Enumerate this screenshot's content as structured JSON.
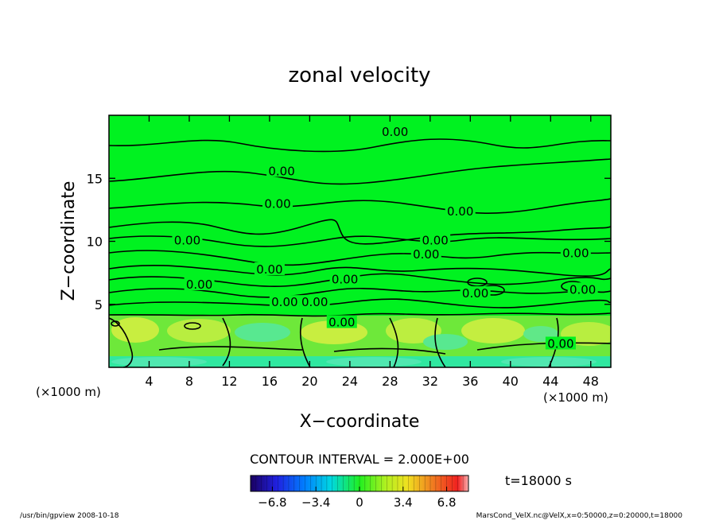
{
  "chart_data": {
    "type": "heatmap",
    "title": "zonal velocity",
    "xlabel": "X−coordinate",
    "ylabel": "Z−coordinate",
    "x_unit_left": "(×1000 m)",
    "x_unit_right": "(×1000 m)",
    "xlim": [
      0,
      50
    ],
    "ylim": [
      0,
      20
    ],
    "xticks": [
      4,
      8,
      12,
      16,
      20,
      24,
      28,
      32,
      36,
      40,
      44,
      48
    ],
    "yticks": [
      5,
      10,
      15
    ],
    "contour_label": "0.00",
    "contour_interval_text": "CONTOUR INTERVAL = 2.000E+00",
    "time_text": "t=18000 s",
    "colorbar": {
      "ticks": [
        "−6.8",
        "−3.4",
        "0",
        "3.4",
        "6.8"
      ],
      "tick_values": [
        -6.8,
        -3.4,
        0,
        3.4,
        6.8
      ],
      "range": [
        -8.5,
        8.5
      ]
    },
    "colors": {
      "background_field": "#00f220",
      "near_surface": "#7ff04a",
      "weak_positive": "#c8f040",
      "weak_negative": "#40e8a0",
      "contour": "#000000"
    },
    "contour_labels": [
      {
        "x": 28.5,
        "z": 18.6,
        "text": "0.00"
      },
      {
        "x": 17.2,
        "z": 15.5,
        "text": "0.00"
      },
      {
        "x": 16.8,
        "z": 12.9,
        "text": "0.00"
      },
      {
        "x": 35.0,
        "z": 12.3,
        "text": "0.00"
      },
      {
        "x": 7.8,
        "z": 10.0,
        "text": "0.00"
      },
      {
        "x": 32.5,
        "z": 10.0,
        "text": "0.00"
      },
      {
        "x": 31.6,
        "z": 8.9,
        "text": "0.00"
      },
      {
        "x": 46.5,
        "z": 9.0,
        "text": "0.00"
      },
      {
        "x": 16.0,
        "z": 7.7,
        "text": "0.00"
      },
      {
        "x": 23.5,
        "z": 6.9,
        "text": "0.00"
      },
      {
        "x": 9.0,
        "z": 6.5,
        "text": "0.00"
      },
      {
        "x": 36.5,
        "z": 5.8,
        "text": "0.00"
      },
      {
        "x": 47.2,
        "z": 6.1,
        "text": "0.00"
      },
      {
        "x": 17.5,
        "z": 5.1,
        "text": "0.00"
      },
      {
        "x": 20.5,
        "z": 5.1,
        "text": "0.00"
      },
      {
        "x": 23.2,
        "z": 3.5,
        "text": "0.00"
      },
      {
        "x": 45.0,
        "z": 1.8,
        "text": "0.00"
      }
    ]
  },
  "footer": {
    "left": "/usr/bin/gpview   2008-10-18",
    "right": "MarsCond_VelX.nc@VelX,x=0:50000,z=0:20000,t=18000"
  }
}
